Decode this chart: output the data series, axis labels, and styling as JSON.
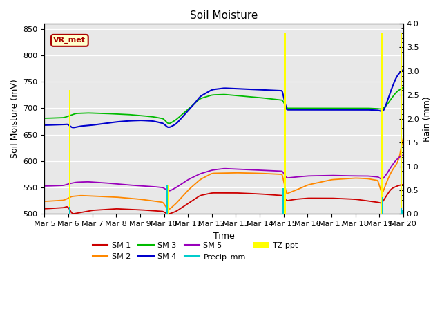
{
  "title": "Soil Moisture",
  "xlabel": "Time",
  "ylabel_left": "Soil Moisture (mV)",
  "ylabel_right": "Rain (mm)",
  "ylim_left": [
    500,
    860
  ],
  "ylim_right": [
    0.0,
    4.0
  ],
  "x_ticks_labels": [
    "Mar 5",
    "Mar 6",
    "Mar 7",
    "Mar 8",
    "Mar 9",
    "Mar 10",
    "Mar 11",
    "Mar 12",
    "Mar 13",
    "Mar 14",
    "Mar 15",
    "Mar 16",
    "Mar 17",
    "Mar 18",
    "Mar 19",
    "Mar 20"
  ],
  "vr_label": "VR_met",
  "series_colors": {
    "SM1": "#cc0000",
    "SM2": "#ff8800",
    "SM3": "#00bb00",
    "SM4": "#0000cc",
    "SM5": "#9900bb",
    "Precip_mm": "#00cccc",
    "TZ_ppt": "#ffff00"
  },
  "legend_labels": [
    "SM 1",
    "SM 2",
    "SM 3",
    "SM 4",
    "SM 5",
    "Precip_mm",
    "TZ ppt"
  ],
  "bg_color": "#e8e8e8",
  "grid_color": "#ffffff",
  "yticks_left": [
    500,
    550,
    600,
    650,
    700,
    750,
    800,
    850
  ],
  "yticks_right": [
    0.0,
    0.5,
    1.0,
    1.5,
    2.0,
    2.5,
    3.0,
    3.5,
    4.0
  ]
}
